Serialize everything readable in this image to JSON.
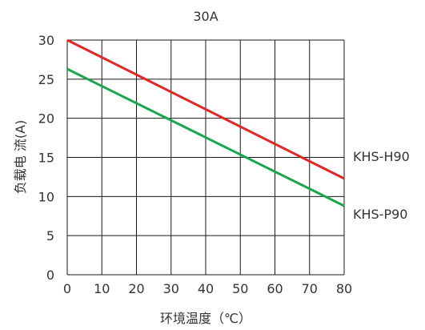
{
  "chart_data": {
    "type": "line",
    "title": "30A",
    "xlabel": "环境温度（℃）",
    "ylabel": "负载电 流(A)",
    "x": [
      0,
      80
    ],
    "xticks": [
      "0",
      "10",
      "20",
      "30",
      "40",
      "50",
      "60",
      "70",
      "80"
    ],
    "yticks": [
      "0",
      "5",
      "10",
      "15",
      "20",
      "25",
      "30"
    ],
    "xlim": [
      0,
      80
    ],
    "ylim": [
      0,
      30
    ],
    "grid": true,
    "series": [
      {
        "name": "KHS-H90",
        "color": "#e02626",
        "values": [
          30,
          12.3
        ]
      },
      {
        "name": "KHS-P90",
        "color": "#1aa64a",
        "values": [
          26.3,
          8.8
        ]
      }
    ]
  }
}
